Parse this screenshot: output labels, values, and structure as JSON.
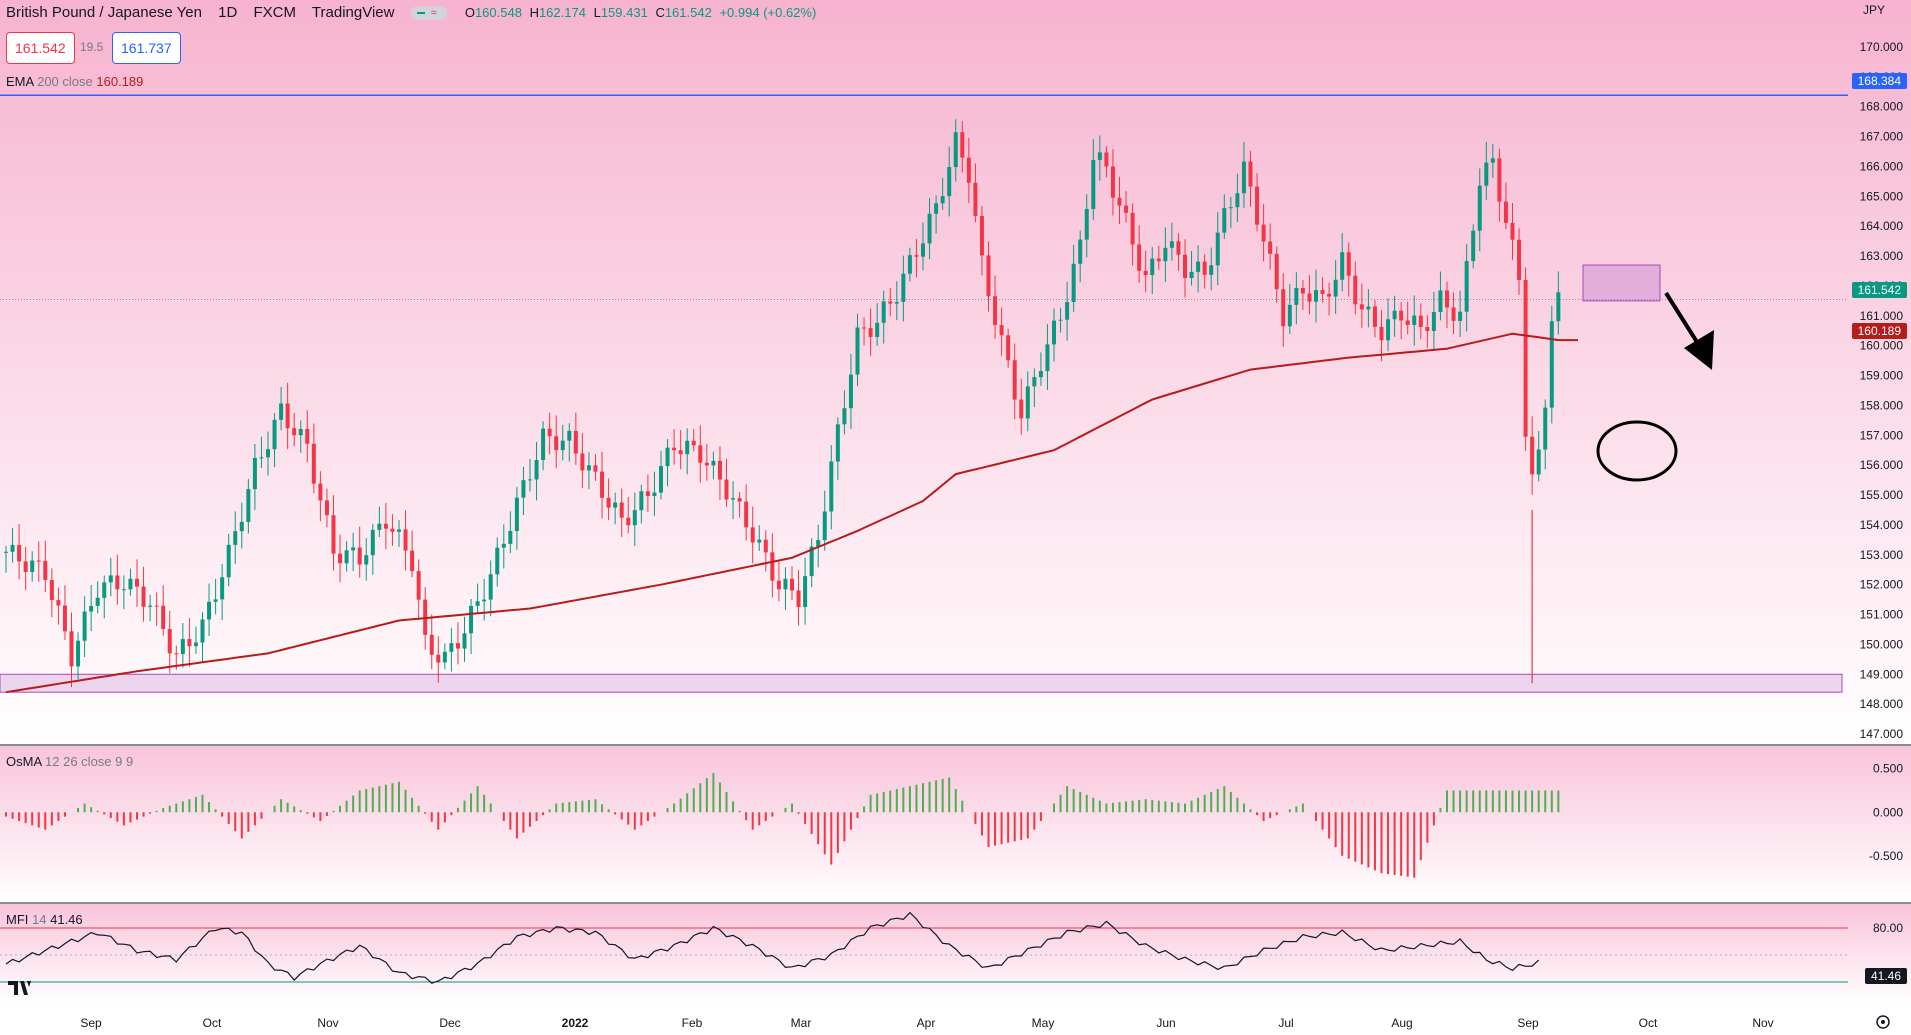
{
  "header": {
    "symbol": "British Pound / Japanese Yen",
    "interval": "1D",
    "exchange": "FXCM",
    "source": "TradingView",
    "open_label": "O",
    "open": "160.548",
    "high_label": "H",
    "high": "162.174",
    "low_label": "L",
    "low": "159.431",
    "close_label": "C",
    "close": "161.542",
    "change": "+0.994 (+0.62%)",
    "bid": "161.542",
    "spread": "19.5",
    "ask": "161.737",
    "currency": "JPY"
  },
  "indicators": {
    "ema": {
      "name": "EMA",
      "params": "200 close",
      "value": "160.189"
    },
    "osma": {
      "name": "OsMA",
      "params": "12 26 close 9 9"
    },
    "mfi": {
      "name": "MFI",
      "params": "14",
      "value": "41.46"
    }
  },
  "price_tags": {
    "resistance": "168.384",
    "last": "161.542",
    "ema": "160.189",
    "mfi": "41.46"
  },
  "colors": {
    "up": "#089981",
    "down": "#f23645",
    "ema": "#b71c1c",
    "resistance": "#2962ff",
    "zone": "#ce93d8",
    "background_top": "#f7b3cf",
    "background_bottom": "#ffffff"
  },
  "chart_data": {
    "type": "candlestick",
    "price_axis": [
      "170.000",
      "169.000",
      "168.000",
      "167.000",
      "166.000",
      "165.000",
      "164.000",
      "163.000",
      "162.000",
      "161.000",
      "160.000",
      "159.000",
      "158.000",
      "157.000",
      "156.000",
      "155.000",
      "154.000",
      "153.000",
      "152.000",
      "151.000",
      "150.000",
      "149.000",
      "148.000",
      "147.000"
    ],
    "ylim": [
      147,
      170
    ],
    "time_axis": [
      "Sep",
      "Oct",
      "Nov",
      "Dec",
      "2022",
      "Feb",
      "Mar",
      "Apr",
      "May",
      "Jun",
      "Jul",
      "Aug",
      "Sep",
      "Oct",
      "Nov"
    ],
    "price_path": [
      [
        0,
        153.1
      ],
      [
        6,
        152.4
      ],
      [
        10,
        149.6
      ],
      [
        14,
        151.9
      ],
      [
        18,
        152.1
      ],
      [
        22,
        151.4
      ],
      [
        26,
        149.6
      ],
      [
        30,
        150.6
      ],
      [
        34,
        153.0
      ],
      [
        38,
        155.9
      ],
      [
        42,
        157.8
      ],
      [
        46,
        156.6
      ],
      [
        50,
        153.1
      ],
      [
        54,
        152.9
      ],
      [
        58,
        154.2
      ],
      [
        62,
        152.8
      ],
      [
        64,
        150.0
      ],
      [
        67,
        149.5
      ],
      [
        70,
        150.5
      ],
      [
        74,
        152.3
      ],
      [
        78,
        154.7
      ],
      [
        82,
        156.9
      ],
      [
        86,
        156.8
      ],
      [
        90,
        155.5
      ],
      [
        94,
        154.1
      ],
      [
        98,
        155.0
      ],
      [
        102,
        156.7
      ],
      [
        106,
        156.4
      ],
      [
        110,
        155.2
      ],
      [
        114,
        153.7
      ],
      [
        118,
        152.0
      ],
      [
        121,
        151.6
      ],
      [
        124,
        153.6
      ],
      [
        127,
        157.1
      ],
      [
        130,
        160.3
      ],
      [
        133,
        160.8
      ],
      [
        136,
        161.8
      ],
      [
        139,
        163.2
      ],
      [
        142,
        164.6
      ],
      [
        145,
        166.8
      ],
      [
        147,
        165.8
      ],
      [
        149,
        162.7
      ],
      [
        152,
        160.1
      ],
      [
        155,
        157.7
      ],
      [
        158,
        159.5
      ],
      [
        161,
        161.0
      ],
      [
        164,
        163.3
      ],
      [
        166,
        166.4
      ],
      [
        168,
        165.9
      ],
      [
        171,
        164.1
      ],
      [
        174,
        162.2
      ],
      [
        177,
        163.5
      ],
      [
        180,
        162.6
      ],
      [
        183,
        162.4
      ],
      [
        186,
        164.3
      ],
      [
        189,
        165.9
      ],
      [
        192,
        163.6
      ],
      [
        195,
        161.0
      ],
      [
        198,
        161.9
      ],
      [
        201,
        161.5
      ],
      [
        204,
        162.8
      ],
      [
        207,
        161.2
      ],
      [
        210,
        160.5
      ],
      [
        213,
        161.1
      ],
      [
        216,
        160.5
      ],
      [
        219,
        161.5
      ],
      [
        222,
        161.0
      ],
      [
        225,
        165.6
      ],
      [
        227,
        166.1
      ],
      [
        229,
        164.2
      ],
      [
        231,
        162.2
      ],
      [
        232,
        157.3
      ],
      [
        233,
        155.6
      ],
      [
        234,
        156.2
      ],
      [
        235,
        158.1
      ],
      [
        236,
        161.1
      ],
      [
        237,
        161.542
      ]
    ],
    "ema200_path": [
      [
        0,
        148.4
      ],
      [
        20,
        149.1
      ],
      [
        40,
        149.7
      ],
      [
        60,
        150.8
      ],
      [
        80,
        151.2
      ],
      [
        100,
        152.0
      ],
      [
        120,
        152.9
      ],
      [
        130,
        153.8
      ],
      [
        140,
        154.8
      ],
      [
        145,
        155.7
      ],
      [
        160,
        156.5
      ],
      [
        175,
        158.2
      ],
      [
        190,
        159.2
      ],
      [
        205,
        159.6
      ],
      [
        220,
        159.9
      ],
      [
        230,
        160.4
      ],
      [
        237,
        160.189
      ]
    ],
    "resistance_level": 168.384,
    "support_zone": [
      148.4,
      149.0
    ],
    "resistance_zone": [
      161.5,
      162.7
    ],
    "osma": {
      "axis": [
        "0.500",
        "0.000",
        "-0.500"
      ],
      "ylim": [
        -0.95,
        0.6
      ],
      "path": [
        [
          0,
          -0.05
        ],
        [
          6,
          -0.2
        ],
        [
          12,
          0.1
        ],
        [
          18,
          -0.15
        ],
        [
          24,
          0.05
        ],
        [
          30,
          0.2
        ],
        [
          36,
          -0.3
        ],
        [
          42,
          0.15
        ],
        [
          48,
          -0.1
        ],
        [
          54,
          0.25
        ],
        [
          60,
          0.35
        ],
        [
          66,
          -0.2
        ],
        [
          72,
          0.3
        ],
        [
          78,
          -0.3
        ],
        [
          84,
          0.1
        ],
        [
          90,
          0.15
        ],
        [
          96,
          -0.2
        ],
        [
          102,
          0.1
        ],
        [
          108,
          0.45
        ],
        [
          114,
          -0.2
        ],
        [
          120,
          0.1
        ],
        [
          126,
          -0.6
        ],
        [
          132,
          0.2
        ],
        [
          138,
          0.3
        ],
        [
          144,
          0.4
        ],
        [
          150,
          -0.4
        ],
        [
          156,
          -0.3
        ],
        [
          162,
          0.3
        ],
        [
          168,
          0.1
        ],
        [
          174,
          0.15
        ],
        [
          180,
          0.1
        ],
        [
          186,
          0.3
        ],
        [
          192,
          -0.1
        ],
        [
          198,
          0.1
        ],
        [
          204,
          -0.5
        ],
        [
          210,
          -0.7
        ],
        [
          215,
          -0.75
        ],
        [
          220,
          0.25
        ]
      ]
    },
    "mfi": {
      "axis": [
        "80.00",
        "41.46"
      ],
      "ylim": [
        0,
        100
      ],
      "upper": 80,
      "lower": 20,
      "path": [
        [
          0,
          40
        ],
        [
          8,
          60
        ],
        [
          14,
          75
        ],
        [
          20,
          55
        ],
        [
          26,
          45
        ],
        [
          32,
          80
        ],
        [
          36,
          75
        ],
        [
          40,
          40
        ],
        [
          44,
          25
        ],
        [
          48,
          40
        ],
        [
          54,
          60
        ],
        [
          60,
          30
        ],
        [
          66,
          20
        ],
        [
          72,
          40
        ],
        [
          78,
          70
        ],
        [
          84,
          80
        ],
        [
          90,
          75
        ],
        [
          96,
          45
        ],
        [
          102,
          60
        ],
        [
          108,
          80
        ],
        [
          114,
          60
        ],
        [
          120,
          35
        ],
        [
          126,
          50
        ],
        [
          132,
          80
        ],
        [
          138,
          95
        ],
        [
          144,
          60
        ],
        [
          150,
          35
        ],
        [
          156,
          55
        ],
        [
          162,
          75
        ],
        [
          168,
          85
        ],
        [
          174,
          60
        ],
        [
          180,
          45
        ],
        [
          186,
          35
        ],
        [
          192,
          55
        ],
        [
          198,
          70
        ],
        [
          204,
          75
        ],
        [
          210,
          55
        ],
        [
          216,
          60
        ],
        [
          222,
          65
        ],
        [
          226,
          45
        ],
        [
          230,
          35
        ],
        [
          234,
          41.46
        ]
      ]
    }
  }
}
